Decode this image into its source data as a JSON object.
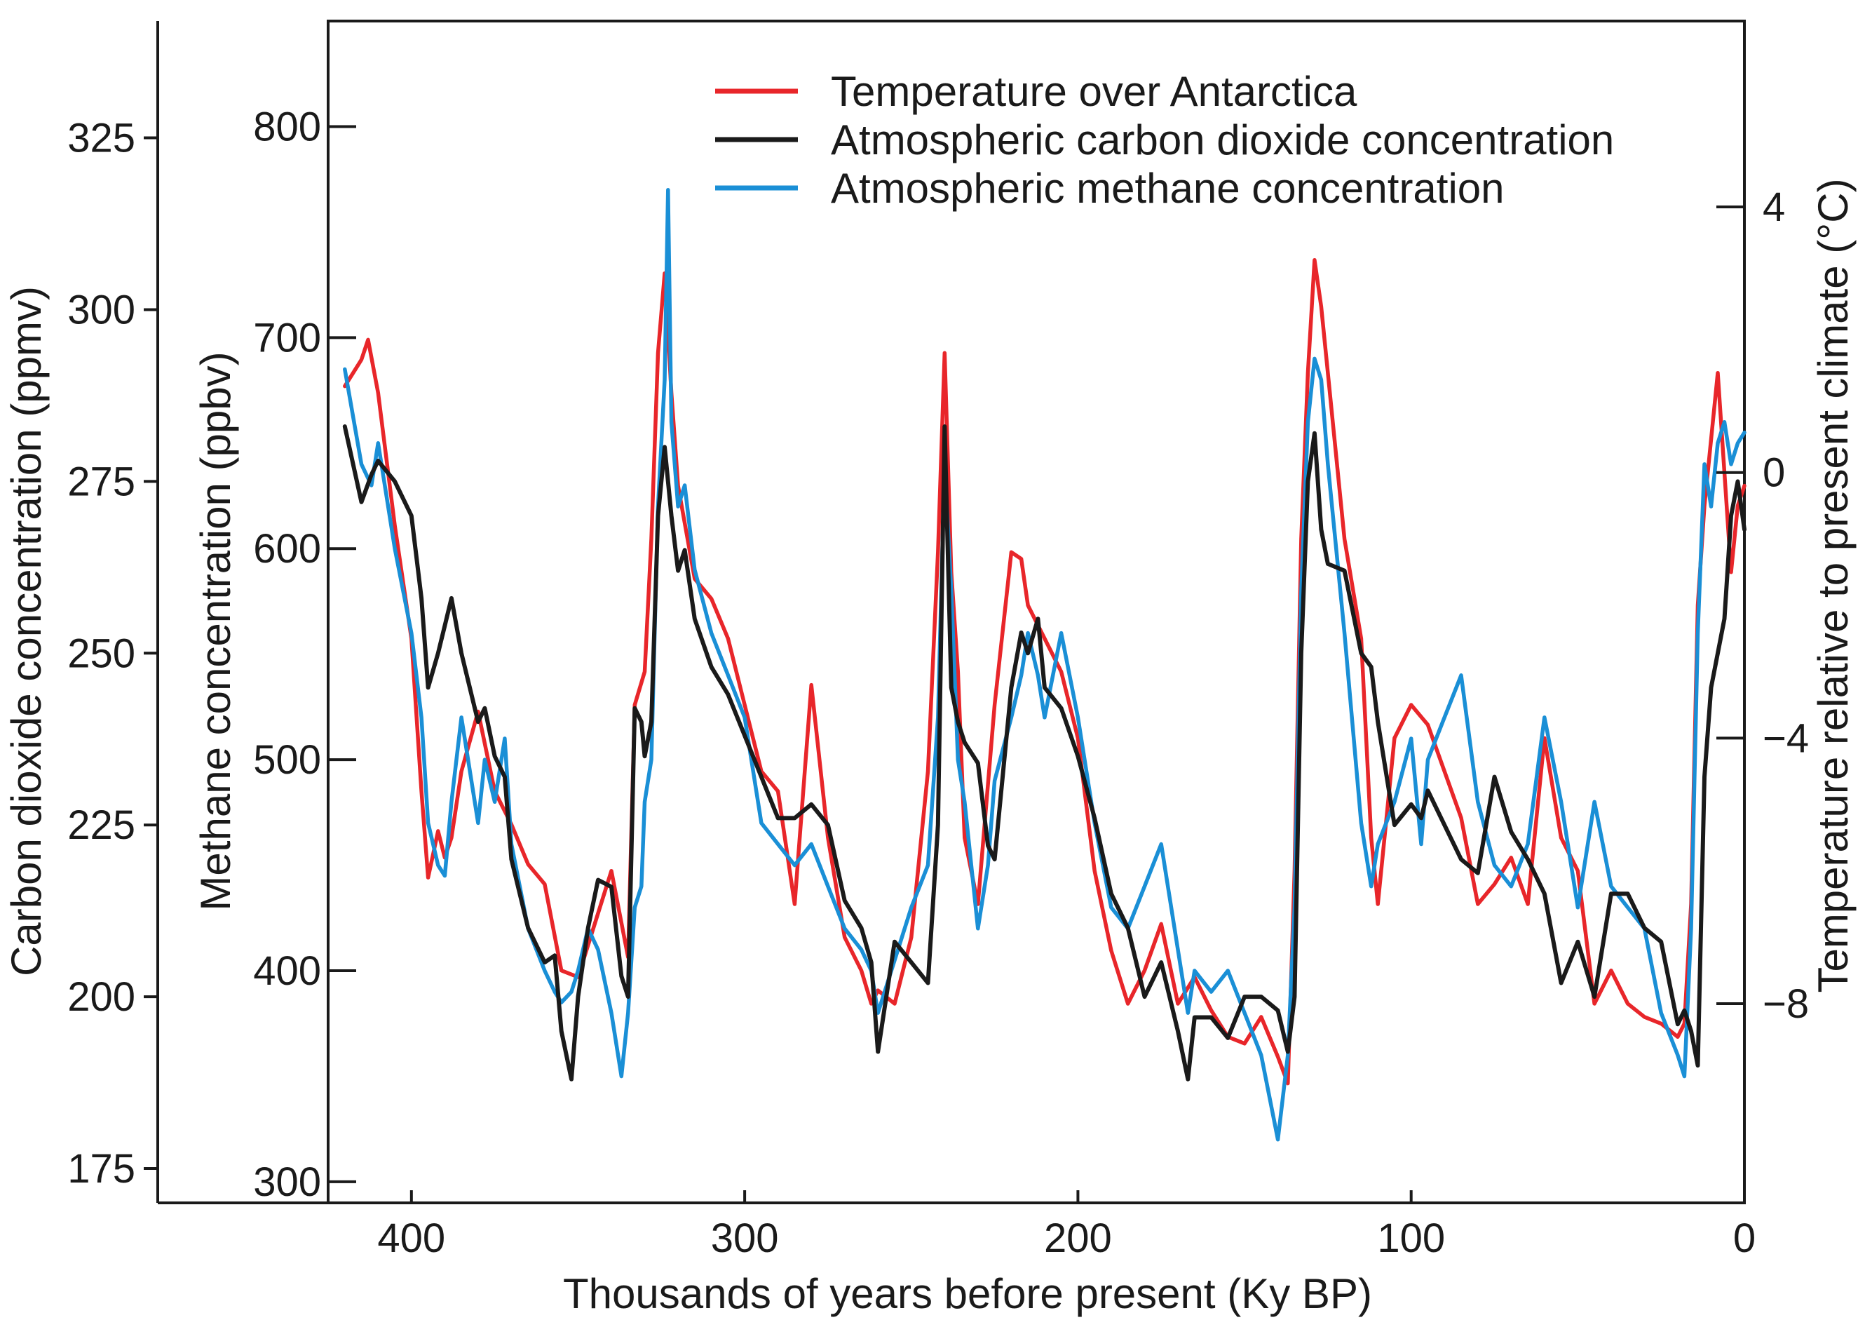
{
  "chart_data": {
    "type": "line",
    "title": "",
    "xlabel": "Thousands of years before present (Ky BP)",
    "xlim": [
      425,
      0
    ],
    "x_reversed": true,
    "x_ticks": [
      400,
      300,
      200,
      100,
      0
    ],
    "axes": {
      "co2": {
        "label": "Carbon dioxide concentration (ppmv)",
        "lim": [
          170,
          342
        ],
        "ticks": [
          175,
          200,
          225,
          250,
          275,
          300,
          325
        ],
        "position": "far-left"
      },
      "ch4": {
        "label": "Methane concentration (ppbv)",
        "lim": [
          290,
          850
        ],
        "ticks": [
          300,
          400,
          500,
          600,
          700,
          800
        ],
        "position": "left"
      },
      "temp": {
        "label": "Temperature relative to present climate (°C)",
        "lim": [
          -11,
          6.8
        ],
        "ticks": [
          4,
          0,
          -4,
          -8
        ],
        "tick_labels": [
          "4",
          "0",
          "−4",
          "−8"
        ],
        "position": "right"
      }
    },
    "legend": {
      "placement": "top-center"
    },
    "series": [
      {
        "name": "Temperature over Antarctica",
        "axis": "temp",
        "color": "#e8262a",
        "x": [
          420,
          415,
          413,
          410,
          405,
          400,
          397,
          395,
          392,
          390,
          388,
          385,
          380,
          375,
          370,
          365,
          360,
          355,
          350,
          345,
          340,
          335,
          333,
          330,
          328,
          326,
          324,
          322,
          320,
          315,
          310,
          305,
          300,
          295,
          290,
          285,
          280,
          275,
          270,
          265,
          262,
          260,
          255,
          250,
          245,
          242,
          240,
          238,
          236,
          234,
          230,
          225,
          220,
          217,
          215,
          210,
          205,
          200,
          195,
          190,
          185,
          180,
          175,
          170,
          165,
          160,
          155,
          150,
          145,
          140,
          137,
          135,
          133,
          131,
          129,
          127,
          125,
          120,
          115,
          112,
          110,
          105,
          100,
          95,
          90,
          85,
          80,
          75,
          70,
          65,
          60,
          55,
          50,
          45,
          40,
          35,
          30,
          25,
          20,
          18,
          16,
          14,
          12,
          10,
          8,
          6,
          4,
          2,
          0
        ],
        "y": [
          1.3,
          1.7,
          2.0,
          1.2,
          -0.8,
          -2.5,
          -4.8,
          -6.1,
          -5.4,
          -5.8,
          -5.5,
          -4.5,
          -3.6,
          -4.8,
          -5.3,
          -5.9,
          -6.2,
          -7.5,
          -7.6,
          -6.8,
          -6.0,
          -7.3,
          -3.5,
          -3.0,
          -1.0,
          1.8,
          3.0,
          1.2,
          -0.2,
          -1.6,
          -1.9,
          -2.5,
          -3.5,
          -4.5,
          -4.8,
          -6.5,
          -3.2,
          -5.5,
          -7.0,
          -7.5,
          -8.0,
          -7.8,
          -8.0,
          -7.0,
          -4.5,
          -1.2,
          1.8,
          -1.5,
          -3.0,
          -5.5,
          -6.5,
          -3.5,
          -1.2,
          -1.3,
          -2.0,
          -2.5,
          -3.0,
          -4.0,
          -6.0,
          -7.2,
          -8.0,
          -7.5,
          -6.8,
          -8.0,
          -7.6,
          -8.1,
          -8.5,
          -8.6,
          -8.2,
          -8.8,
          -9.2,
          -6.0,
          -1.0,
          1.5,
          3.2,
          2.5,
          1.5,
          -1.0,
          -2.5,
          -5.5,
          -6.5,
          -4.0,
          -3.5,
          -3.8,
          -4.5,
          -5.2,
          -6.5,
          -6.2,
          -5.8,
          -6.5,
          -4.0,
          -5.5,
          -6.0,
          -8.0,
          -7.5,
          -8.0,
          -8.2,
          -8.3,
          -8.5,
          -8.3,
          -6.5,
          -2.0,
          -0.5,
          0.5,
          1.5,
          0.0,
          -1.5,
          -0.5,
          -0.2
        ]
      },
      {
        "name": "Atmospheric carbon dioxide concentration",
        "axis": "co2",
        "color": "#1a1a1a",
        "x": [
          420,
          415,
          412,
          410,
          405,
          400,
          397,
          395,
          392,
          390,
          388,
          385,
          380,
          378,
          375,
          372,
          370,
          365,
          360,
          357,
          355,
          352,
          350,
          347,
          344,
          340,
          337,
          335,
          333,
          331,
          330,
          328,
          326,
          324,
          322,
          320,
          318,
          315,
          310,
          305,
          300,
          295,
          290,
          285,
          280,
          275,
          270,
          265,
          262,
          260,
          255,
          250,
          245,
          242,
          240,
          238,
          236,
          234,
          230,
          227,
          225,
          220,
          217,
          215,
          212,
          210,
          205,
          200,
          195,
          190,
          185,
          180,
          175,
          170,
          167,
          165,
          160,
          155,
          150,
          145,
          140,
          137,
          135,
          133,
          131,
          129,
          127,
          125,
          120,
          115,
          112,
          110,
          105,
          100,
          97,
          95,
          90,
          85,
          80,
          75,
          70,
          65,
          60,
          55,
          50,
          45,
          40,
          35,
          30,
          25,
          20,
          18,
          16,
          14,
          12,
          10,
          8,
          6,
          4,
          2,
          0
        ],
        "y": [
          283,
          272,
          276,
          278,
          275,
          270,
          258,
          245,
          250,
          254,
          258,
          250,
          240,
          242,
          235,
          232,
          220,
          210,
          205,
          206,
          195,
          188,
          200,
          210,
          217,
          216,
          203,
          200,
          242,
          240,
          235,
          240,
          270,
          280,
          270,
          262,
          265,
          255,
          248,
          244,
          238,
          232,
          226,
          226,
          228,
          225,
          214,
          210,
          205,
          192,
          208,
          205,
          202,
          225,
          283,
          245,
          240,
          237,
          234,
          222,
          220,
          245,
          253,
          250,
          255,
          245,
          242,
          235,
          226,
          215,
          210,
          200,
          205,
          195,
          188,
          197,
          197,
          194,
          200,
          200,
          198,
          192,
          200,
          250,
          275,
          282,
          268,
          263,
          262,
          250,
          248,
          240,
          225,
          228,
          226,
          230,
          225,
          220,
          218,
          232,
          224,
          220,
          215,
          202,
          208,
          200,
          215,
          215,
          210,
          208,
          196,
          198,
          195,
          190,
          232,
          245,
          250,
          255,
          270,
          275,
          268
        ]
      },
      {
        "name": "Atmospheric methane concentration",
        "axis": "ch4",
        "color": "#1a8fd6",
        "x": [
          420,
          415,
          412,
          410,
          405,
          400,
          397,
          395,
          392,
          390,
          388,
          385,
          380,
          378,
          375,
          372,
          370,
          365,
          360,
          357,
          355,
          352,
          350,
          347,
          344,
          340,
          337,
          335,
          333,
          331,
          330,
          328,
          326,
          324,
          323,
          322,
          320,
          318,
          315,
          310,
          305,
          300,
          295,
          290,
          285,
          280,
          275,
          270,
          265,
          262,
          260,
          255,
          250,
          245,
          242,
          240,
          238,
          236,
          234,
          230,
          227,
          225,
          220,
          217,
          215,
          212,
          210,
          205,
          200,
          195,
          190,
          185,
          180,
          175,
          170,
          167,
          165,
          160,
          155,
          150,
          145,
          140,
          137,
          135,
          133,
          131,
          129,
          127,
          125,
          120,
          115,
          112,
          110,
          105,
          100,
          97,
          95,
          90,
          85,
          80,
          75,
          70,
          65,
          60,
          55,
          50,
          45,
          40,
          35,
          30,
          25,
          20,
          18,
          16,
          14,
          12,
          10,
          8,
          6,
          4,
          2,
          0
        ],
        "y": [
          685,
          640,
          630,
          650,
          600,
          560,
          520,
          470,
          450,
          445,
          480,
          520,
          470,
          500,
          480,
          510,
          460,
          420,
          400,
          390,
          385,
          390,
          400,
          420,
          410,
          380,
          350,
          380,
          430,
          440,
          480,
          500,
          620,
          680,
          770,
          660,
          620,
          630,
          590,
          560,
          540,
          520,
          470,
          460,
          450,
          460,
          440,
          420,
          410,
          400,
          380,
          405,
          430,
          450,
          520,
          640,
          580,
          500,
          480,
          420,
          450,
          490,
          520,
          540,
          560,
          540,
          520,
          560,
          520,
          470,
          430,
          420,
          440,
          460,
          410,
          380,
          400,
          390,
          400,
          380,
          360,
          320,
          360,
          430,
          580,
          660,
          690,
          680,
          640,
          560,
          470,
          440,
          460,
          480,
          510,
          460,
          500,
          520,
          540,
          480,
          450,
          440,
          460,
          520,
          480,
          430,
          480,
          440,
          430,
          420,
          380,
          360,
          350,
          420,
          560,
          640,
          620,
          650,
          660,
          640,
          650,
          655
        ]
      }
    ]
  }
}
